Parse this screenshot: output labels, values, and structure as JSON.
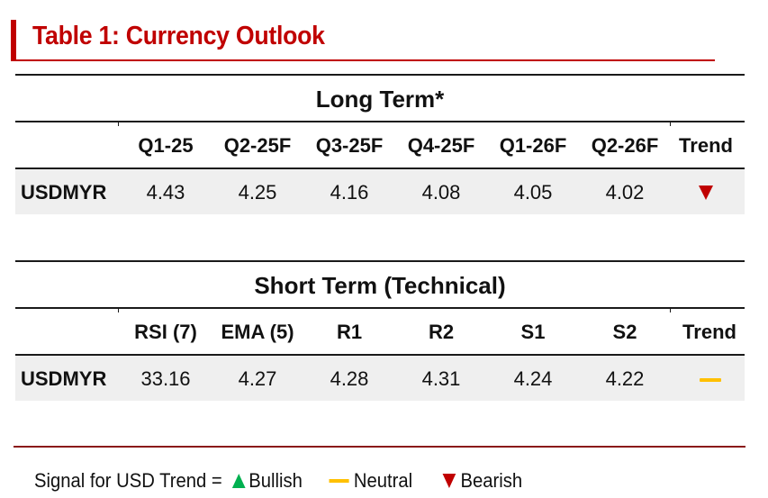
{
  "title": "Table 1: Currency Outlook",
  "long_term": {
    "heading": "Long Term*",
    "columns": [
      "Q1-25",
      "Q2-25F",
      "Q3-25F",
      "Q4-25F",
      "Q1-26F",
      "Q2-26F",
      "Trend"
    ],
    "row": {
      "label": "USDMYR",
      "values": [
        "4.43",
        "4.25",
        "4.16",
        "4.08",
        "4.05",
        "4.02"
      ],
      "trend": "bearish"
    }
  },
  "short_term": {
    "heading": "Short Term (Technical)",
    "columns": [
      "RSI (7)",
      "EMA (5)",
      "R1",
      "R2",
      "S1",
      "S2",
      "Trend"
    ],
    "row": {
      "label": "USDMYR",
      "values": [
        "33.16",
        "4.27",
        "4.28",
        "4.31",
        "4.24",
        "4.22"
      ],
      "trend": "neutral"
    }
  },
  "legend": {
    "prefix": "Signal for USD Trend = ",
    "bullish": "Bullish",
    "neutral": "Neutral",
    "bearish": "Bearish"
  },
  "colors": {
    "accent": "#c00000",
    "bullish": "#00b050",
    "neutral": "#ffc000",
    "bearish": "#c00000",
    "row_bg": "#efefef"
  }
}
